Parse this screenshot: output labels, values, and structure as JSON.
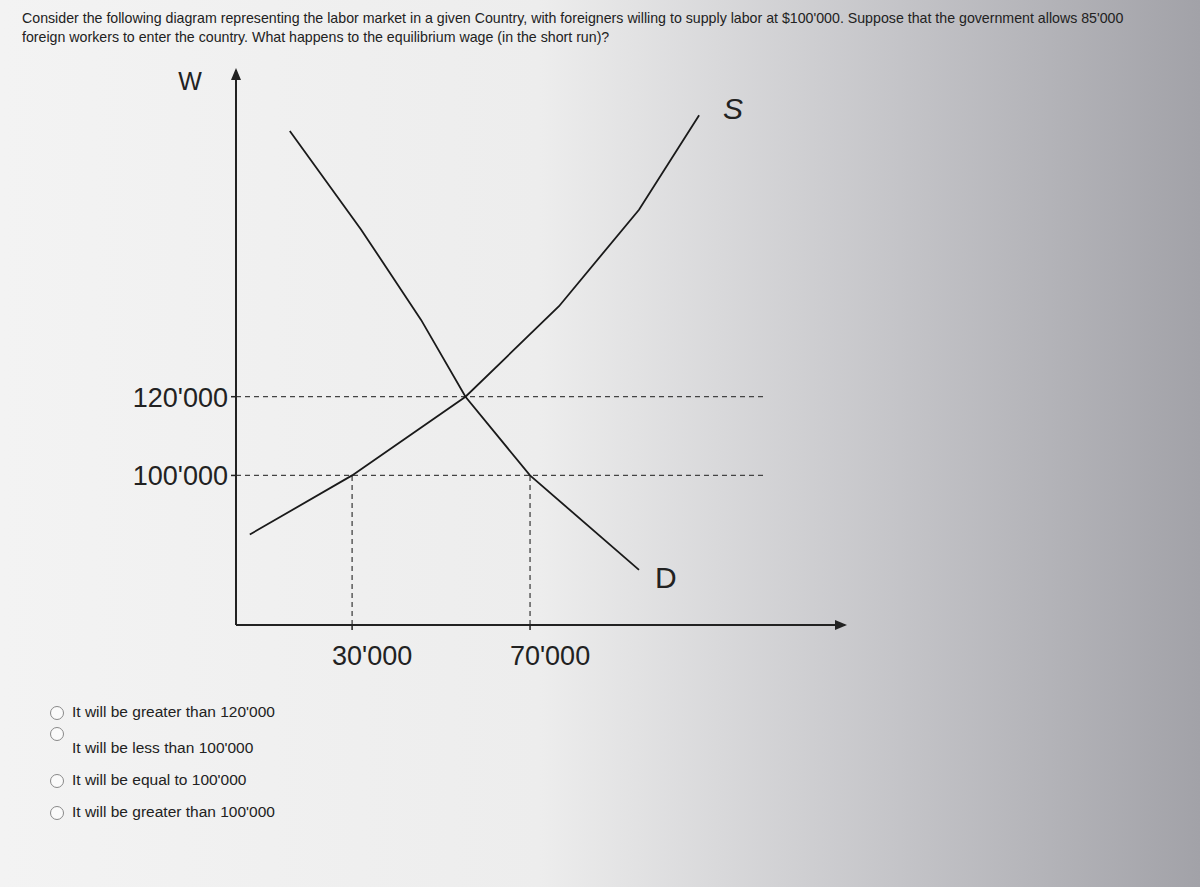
{
  "question": "Consider the following diagram representing the labor market in a given Country, with foreigners willing to supply labor at $100'000. Suppose that the government allows 85'000 foreign workers to enter the country. What happens to the equilibrium wage (in the short run)?",
  "chart_data": {
    "type": "line",
    "y_label": "W",
    "xlim": [
      3900,
      140800
    ],
    "ylim": [
      62000,
      203000
    ],
    "xticks": [
      {
        "value": 30000,
        "label": "30'000"
      },
      {
        "value": 70000,
        "label": "70'000"
      }
    ],
    "yticks": [
      {
        "value": 100000,
        "label": "100'000"
      },
      {
        "value": 120000,
        "label": "120'000"
      }
    ],
    "grid": true,
    "tick_labels": true,
    "guides": [
      {
        "x": 30000,
        "y": 100000
      },
      {
        "x": 70000,
        "y": 100000
      }
    ],
    "series": [
      {
        "name": "S",
        "color": "#1a1a1a",
        "x": [
          7000,
          30000,
          55500,
          76500,
          94500,
          108000
        ],
        "values": [
          85000,
          100000,
          120000,
          143000,
          167500,
          191500
        ]
      },
      {
        "name": "D",
        "color": "#1a1a1a",
        "x": [
          16000,
          32000,
          45500,
          55500,
          70000,
          94500
        ],
        "values": [
          187500,
          162500,
          139500,
          120000,
          100000,
          76000
        ]
      }
    ]
  },
  "options": [
    "It will be greater than 120'000",
    "It will be less than 100'000",
    "It will be equal to 100'000",
    "It will be greater than 100'000"
  ]
}
